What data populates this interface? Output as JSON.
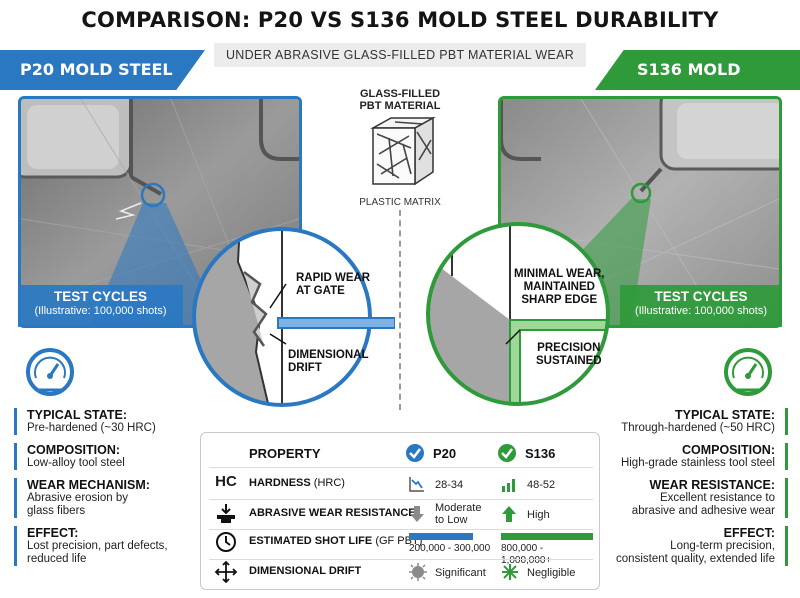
{
  "title": "COMPARISON: P20 VS S136 MOLD STEEL DURABILITY",
  "subtitle": "UNDER ABRASIVE GLASS-FILLED PBT MATERIAL WEAR",
  "left": {
    "banner": "P20 MOLD STEEL",
    "cycles_title": "TEST CYCLES",
    "cycles_sub": "(Illustrative: 100,000 shots)",
    "callout_1": [
      "RAPID WEAR",
      "AT GATE"
    ],
    "callout_2": [
      "DIMENSIONAL",
      "DRIFT"
    ],
    "stats": [
      {
        "k": "TYPICAL STATE:",
        "v": [
          "Pre-hardened (~30 HRC)"
        ]
      },
      {
        "k": "COMPOSITION:",
        "v": [
          "Low-alloy tool steel"
        ]
      },
      {
        "k": "WEAR MECHANISM:",
        "v": [
          "Abrasive erosion by",
          "glass fibers"
        ]
      },
      {
        "k": "EFFECT:",
        "v": [
          "Lost precision, part defects,",
          "reduced life"
        ]
      }
    ]
  },
  "right": {
    "banner": "S136 MOLD STEEL",
    "cycles_title": "TEST CYCLES",
    "cycles_sub": "(Illustrative: 100,000 shots)",
    "callout_1": [
      "MINIMAL WEAR,",
      "MAINTAINED",
      "SHARP EDGE"
    ],
    "callout_2": [
      "PRECISION",
      "SUSTAINED"
    ],
    "stats": [
      {
        "k": "TYPICAL STATE:",
        "v": [
          "Through-hardened (~50 HRC)"
        ]
      },
      {
        "k": "COMPOSITION:",
        "v": [
          "High-grade stainless tool steel"
        ]
      },
      {
        "k": "WEAR RESISTANCE:",
        "v": [
          "Excellent resistance to",
          "abrasive and adhesive wear"
        ]
      },
      {
        "k": "EFFECT:",
        "v": [
          "Long-term precision,",
          "consistent quality, extended life"
        ]
      }
    ]
  },
  "center": {
    "material": [
      "GLASS-FILLED",
      "PBT MATERIAL"
    ],
    "matrix": "PLASTIC MATRIX"
  },
  "table": {
    "header": {
      "property": "PROPERTY",
      "p20": "P20",
      "s136": "S136"
    },
    "rows": [
      {
        "icon_text": "HC",
        "icon": "hc-icon",
        "prop": "HARDNESS",
        "unit": "(HRC)",
        "p20": [
          "28-34"
        ],
        "s136": [
          "48-52"
        ],
        "p20_icon": "downtrend-icon",
        "s136_icon": "bars-up-icon"
      },
      {
        "icon_text": "",
        "icon": "anvil-icon",
        "prop": "ABRASIVE WEAR RESISTANCE",
        "unit": "",
        "p20": [
          "Moderate",
          "to Low"
        ],
        "s136": [
          "High"
        ],
        "p20_icon": "down-arrow-icon",
        "s136_icon": "up-arrow-icon"
      },
      {
        "icon_text": "",
        "icon": "clock-icon",
        "prop": "ESTIMATED SHOT LIFE",
        "unit": "(GF PBT)",
        "p20": [
          "200,000 - 300,000"
        ],
        "s136": [
          "800,000 - 1,000,000+"
        ],
        "p20_icon": "life-bar",
        "s136_icon": "life-bar"
      },
      {
        "icon_text": "",
        "icon": "drift-icon",
        "prop": "DIMENSIONAL DRIFT",
        "unit": "",
        "p20": [
          "Significant"
        ],
        "s136": [
          "Negligible"
        ],
        "p20_icon": "burst-icon",
        "s136_icon": "star-icon"
      }
    ]
  },
  "colors": {
    "p20": "#2a78c2",
    "s136": "#2e9a3a",
    "text": "#1a1a1a"
  }
}
